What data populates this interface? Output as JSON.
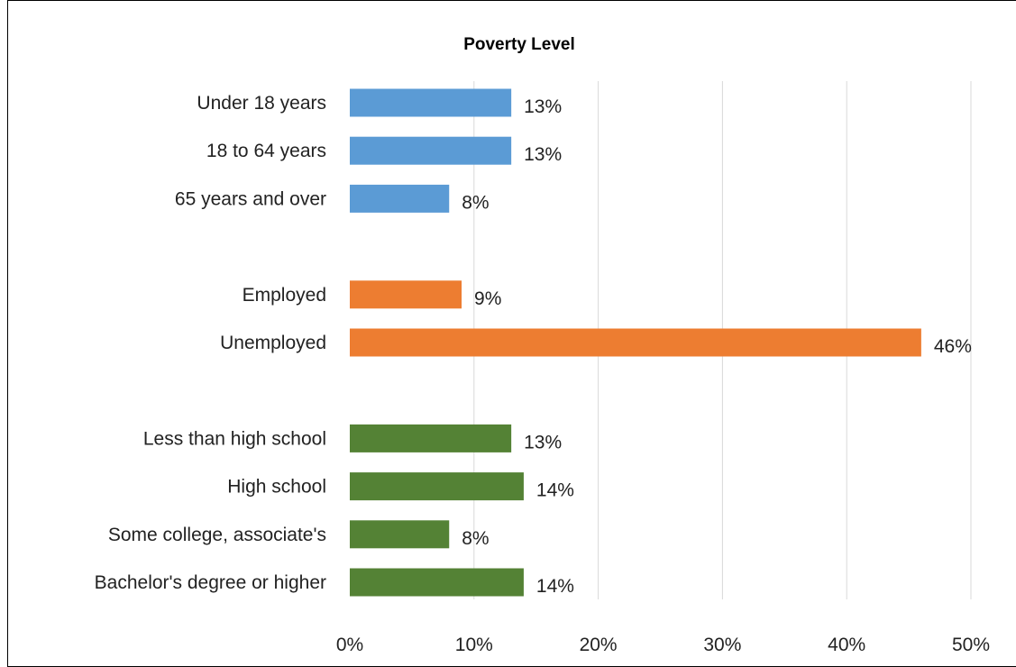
{
  "chart_data": {
    "type": "bar",
    "orientation": "horizontal",
    "title": "Poverty Level",
    "xlabel": "",
    "ylabel": "",
    "xlim": [
      0,
      50
    ],
    "x_ticks": [
      0,
      10,
      20,
      30,
      40,
      50
    ],
    "x_tick_labels": [
      "0%",
      "10%",
      "20%",
      "30%",
      "40%",
      "50%"
    ],
    "grid": "vertical",
    "legend": "none",
    "groups": [
      {
        "color": "#5b9bd5",
        "bars": [
          {
            "category": "Under 18 years",
            "value": 13,
            "label": "13%"
          },
          {
            "category": "18 to 64 years",
            "value": 13,
            "label": "13%"
          },
          {
            "category": "65 years and over",
            "value": 8,
            "label": "8%"
          }
        ]
      },
      {
        "color": "#ed7d31",
        "bars": [
          {
            "category": "Employed",
            "value": 9,
            "label": "9%"
          },
          {
            "category": "Unemployed",
            "value": 46,
            "label": "46%"
          }
        ]
      },
      {
        "color": "#548235",
        "bars": [
          {
            "category": "Less than high school",
            "value": 13,
            "label": "13%"
          },
          {
            "category": "High school",
            "value": 14,
            "label": "14%"
          },
          {
            "category": "Some college, associate's",
            "value": 8,
            "label": "8%"
          },
          {
            "category": "Bachelor's degree or higher",
            "value": 14,
            "label": "14%"
          }
        ]
      }
    ]
  }
}
